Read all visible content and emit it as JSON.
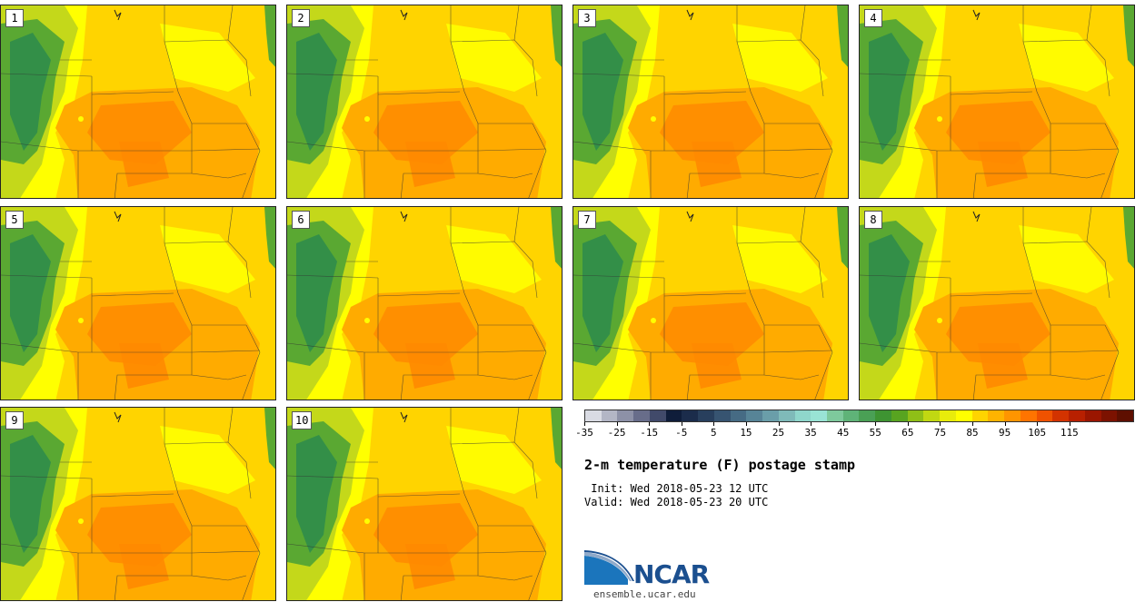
{
  "panels": [
    {
      "label": "1"
    },
    {
      "label": "2"
    },
    {
      "label": "3"
    },
    {
      "label": "4"
    },
    {
      "label": "5"
    },
    {
      "label": "6"
    },
    {
      "label": "7"
    },
    {
      "label": "8"
    },
    {
      "label": "9"
    },
    {
      "label": "10"
    }
  ],
  "colorbar": {
    "colors": [
      "#d9dbe3",
      "#b3b6c5",
      "#8d91a7",
      "#686d8a",
      "#414a6a",
      "#0f1d3a",
      "#1b2c4b",
      "#283f5d",
      "#375471",
      "#466b84",
      "#578497",
      "#6a9ea9",
      "#7fbab9",
      "#8fd6cb",
      "#99e3d5",
      "#7ec99c",
      "#5fb378",
      "#4aa055",
      "#3e9432",
      "#58a420",
      "#8fbf17",
      "#c1d812",
      "#e8ec0b",
      "#ffff00",
      "#ffd400",
      "#ffb300",
      "#ff9500",
      "#ff7400",
      "#ef5200",
      "#d33300",
      "#b82000",
      "#9a1600",
      "#7c1200",
      "#5e0f00"
    ],
    "tick_labels": [
      "-35",
      "-25",
      "-15",
      "-5",
      "5",
      "15",
      "25",
      "35",
      "45",
      "55",
      "65",
      "75",
      "85",
      "95",
      "105",
      "115"
    ]
  },
  "title": "2-m temperature (F) postage stamp",
  "init_text": " Init: Wed 2018-05-23 12 UTC",
  "valid_text": "Valid: Wed 2018-05-23 20 UTC",
  "logo": {
    "wordmark": "NCAR",
    "site": "ensemble.ucar.edu"
  },
  "map_colors": {
    "green_dark": "#2f8c4a",
    "green": "#5aa832",
    "yellow_green": "#c4d81a",
    "yellow": "#ffff00",
    "yellow_orange": "#ffd400",
    "orange": "#ffab00",
    "dark_orange": "#ff8a00"
  }
}
